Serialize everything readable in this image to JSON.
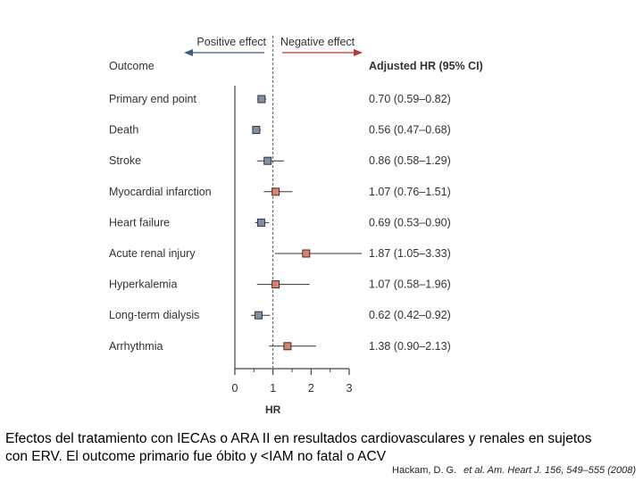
{
  "chart_data": {
    "type": "forest",
    "header_left": "Positive effect",
    "header_right": "Negative effect",
    "col_outcome": "Outcome",
    "col_hr": "Adjusted HR (95% CI)",
    "xlabel": "HR",
    "xlim": [
      0,
      3
    ],
    "xticks": [
      "0",
      "1",
      "2",
      "3"
    ],
    "reference_line": 1,
    "rows": [
      {
        "label": "Primary end point",
        "hr": 0.7,
        "lo": 0.59,
        "hi": 0.82,
        "text": "0.70 (0.59–0.82)",
        "color": "#7e8fae"
      },
      {
        "label": "Death",
        "hr": 0.56,
        "lo": 0.47,
        "hi": 0.68,
        "text": "0.56 (0.47–0.68)",
        "color": "#7e8fae"
      },
      {
        "label": "Stroke",
        "hr": 0.86,
        "lo": 0.58,
        "hi": 1.29,
        "text": "0.86 (0.58–1.29)",
        "color": "#7e8fae"
      },
      {
        "label": "Myocardial infarction",
        "hr": 1.07,
        "lo": 0.76,
        "hi": 1.51,
        "text": "1.07 (0.76–1.51)",
        "color": "#e07f6a"
      },
      {
        "label": "Heart failure",
        "hr": 0.69,
        "lo": 0.53,
        "hi": 0.9,
        "text": "0.69 (0.53–0.90)",
        "color": "#7e8fae"
      },
      {
        "label": "Acute renal injury",
        "hr": 1.87,
        "lo": 1.05,
        "hi": 3.33,
        "text": "1.87 (1.05–3.33)",
        "color": "#e07f6a"
      },
      {
        "label": "Hyperkalemia",
        "hr": 1.07,
        "lo": 0.58,
        "hi": 1.96,
        "text": "1.07 (0.58–1.96)",
        "color": "#e07f6a"
      },
      {
        "label": "Long-term dialysis",
        "hr": 0.62,
        "lo": 0.42,
        "hi": 0.92,
        "text": "0.62 (0.42–0.92)",
        "color": "#7e8fae"
      },
      {
        "label": "Arrhythmia",
        "hr": 1.38,
        "lo": 0.9,
        "hi": 2.13,
        "text": "1.38 (0.90–2.13)",
        "color": "#e07f6a"
      }
    ],
    "colors": {
      "text": "#333333",
      "axis": "#444444",
      "left_arrow": "#3a5d8f",
      "right_arrow": "#b83a2e",
      "whisker": "#333333"
    }
  },
  "caption": {
    "line1": "Efectos del tratamiento  con IECAs o ARA II en resultados cardiovasculares y renales en sujetos",
    "line2": "con ERV. El outcome  primario fue  óbito y <IAM no fatal o ACV"
  },
  "citation": {
    "authors": "Hackam, D. G.",
    "rest": "et al. Am. Heart J. 156, 549–555 (2008)"
  }
}
